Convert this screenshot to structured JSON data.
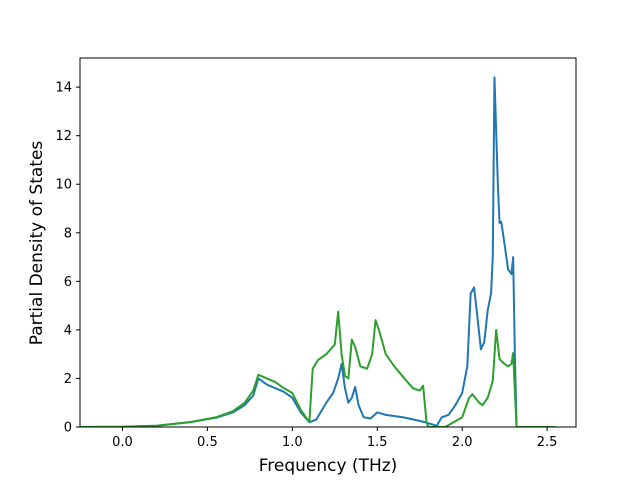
{
  "chart_data": {
    "type": "line",
    "title": "",
    "xlabel": "Frequency (THz)",
    "ylabel": "Partial Density of States",
    "xlim": [
      -0.25,
      2.67
    ],
    "ylim": [
      0,
      15.2
    ],
    "xticks": [
      0.0,
      0.5,
      1.0,
      1.5,
      2.0,
      2.5
    ],
    "xtick_labels": [
      "0.0",
      "0.5",
      "1.0",
      "1.5",
      "2.0",
      "2.5"
    ],
    "yticks": [
      0,
      2,
      4,
      6,
      8,
      10,
      12,
      14
    ],
    "ytick_labels": [
      "0",
      "2",
      "4",
      "6",
      "8",
      "10",
      "12",
      "14"
    ],
    "grid": false,
    "legend": "none",
    "series": [
      {
        "color": "#1f77b4",
        "points": [
          [
            -0.25,
            0
          ],
          [
            0.0,
            0.01
          ],
          [
            0.2,
            0.05
          ],
          [
            0.4,
            0.2
          ],
          [
            0.55,
            0.38
          ],
          [
            0.65,
            0.6
          ],
          [
            0.72,
            0.9
          ],
          [
            0.77,
            1.3
          ],
          [
            0.8,
            2.0
          ],
          [
            0.85,
            1.75
          ],
          [
            0.9,
            1.6
          ],
          [
            0.95,
            1.45
          ],
          [
            1.0,
            1.2
          ],
          [
            1.05,
            0.6
          ],
          [
            1.1,
            0.2
          ],
          [
            1.14,
            0.3
          ],
          [
            1.2,
            1.0
          ],
          [
            1.24,
            1.4
          ],
          [
            1.27,
            2.0
          ],
          [
            1.29,
            2.6
          ],
          [
            1.31,
            1.6
          ],
          [
            1.33,
            1.0
          ],
          [
            1.35,
            1.2
          ],
          [
            1.37,
            1.65
          ],
          [
            1.39,
            0.9
          ],
          [
            1.42,
            0.4
          ],
          [
            1.46,
            0.35
          ],
          [
            1.5,
            0.6
          ],
          [
            1.55,
            0.5
          ],
          [
            1.65,
            0.4
          ],
          [
            1.72,
            0.3
          ],
          [
            1.78,
            0.2
          ],
          [
            1.85,
            0.05
          ],
          [
            1.88,
            0.4
          ],
          [
            1.92,
            0.5
          ],
          [
            1.96,
            0.9
          ],
          [
            2.0,
            1.4
          ],
          [
            2.03,
            2.5
          ],
          [
            2.05,
            5.5
          ],
          [
            2.07,
            5.75
          ],
          [
            2.09,
            4.5
          ],
          [
            2.11,
            3.2
          ],
          [
            2.13,
            3.5
          ],
          [
            2.15,
            4.8
          ],
          [
            2.17,
            5.5
          ],
          [
            2.18,
            7.0
          ],
          [
            2.19,
            14.4
          ],
          [
            2.21,
            10.0
          ],
          [
            2.22,
            8.4
          ],
          [
            2.23,
            8.45
          ],
          [
            2.25,
            7.5
          ],
          [
            2.27,
            6.5
          ],
          [
            2.29,
            6.3
          ],
          [
            2.3,
            7.0
          ],
          [
            2.31,
            3.0
          ],
          [
            2.32,
            0
          ],
          [
            2.55,
            0
          ]
        ]
      },
      {
        "color": "#2ca02c",
        "points": [
          [
            -0.25,
            0
          ],
          [
            0.0,
            0.01
          ],
          [
            0.2,
            0.05
          ],
          [
            0.4,
            0.2
          ],
          [
            0.55,
            0.4
          ],
          [
            0.65,
            0.65
          ],
          [
            0.72,
            1.0
          ],
          [
            0.77,
            1.5
          ],
          [
            0.8,
            2.15
          ],
          [
            0.85,
            2.0
          ],
          [
            0.9,
            1.85
          ],
          [
            0.95,
            1.6
          ],
          [
            1.0,
            1.4
          ],
          [
            1.05,
            0.7
          ],
          [
            1.1,
            0.2
          ],
          [
            1.12,
            2.4
          ],
          [
            1.15,
            2.75
          ],
          [
            1.2,
            3.0
          ],
          [
            1.25,
            3.4
          ],
          [
            1.27,
            4.75
          ],
          [
            1.29,
            3.0
          ],
          [
            1.31,
            2.1
          ],
          [
            1.33,
            2.0
          ],
          [
            1.35,
            3.6
          ],
          [
            1.37,
            3.3
          ],
          [
            1.4,
            2.5
          ],
          [
            1.44,
            2.4
          ],
          [
            1.47,
            3.0
          ],
          [
            1.49,
            4.4
          ],
          [
            1.51,
            4.0
          ],
          [
            1.55,
            3.0
          ],
          [
            1.6,
            2.5
          ],
          [
            1.66,
            2.0
          ],
          [
            1.71,
            1.6
          ],
          [
            1.75,
            1.5
          ],
          [
            1.77,
            1.7
          ],
          [
            1.79,
            0.2
          ],
          [
            1.8,
            0
          ],
          [
            1.9,
            0
          ],
          [
            2.0,
            0.4
          ],
          [
            2.04,
            1.2
          ],
          [
            2.06,
            1.35
          ],
          [
            2.1,
            1.0
          ],
          [
            2.12,
            0.9
          ],
          [
            2.15,
            1.2
          ],
          [
            2.18,
            1.9
          ],
          [
            2.2,
            4.0
          ],
          [
            2.22,
            2.8
          ],
          [
            2.24,
            2.65
          ],
          [
            2.27,
            2.5
          ],
          [
            2.29,
            2.6
          ],
          [
            2.3,
            3.05
          ],
          [
            2.31,
            1.5
          ],
          [
            2.32,
            0
          ],
          [
            2.55,
            0
          ]
        ]
      }
    ]
  }
}
